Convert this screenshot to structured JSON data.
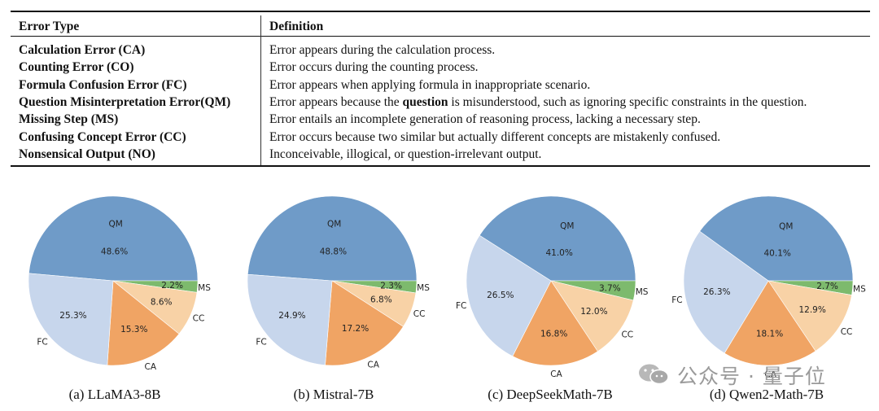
{
  "table": {
    "headers": [
      "Error Type",
      "Definition"
    ],
    "rows": [
      {
        "type": "Calculation Error (CA)",
        "definition": [
          "Error appears during the calculation process."
        ]
      },
      {
        "type": "Counting Error (CO)",
        "definition": [
          "Error occurs during the counting process."
        ]
      },
      {
        "type": "Formula Confusion Error (FC)",
        "definition": [
          "Error appears when applying formula in inappropriate scenario."
        ]
      },
      {
        "type": "Question Misinterpretation Error(QM)",
        "definition": [
          "Error appears because the ",
          "question",
          " is misunderstood, such as ignoring specific constraints in the question."
        ]
      },
      {
        "type": "Missing Step (MS)",
        "definition": [
          "Error entails an incomplete generation of reasoning process, lacking a necessary step."
        ]
      },
      {
        "type": "Confusing Concept Error (CC)",
        "definition": [
          "Error occurs because two similar but actually different concepts are mistakenly confused."
        ]
      },
      {
        "type": "Nonsensical Output (NO)",
        "definition": [
          "Inconceivable, illogical, or question-irrelevant output."
        ]
      }
    ]
  },
  "colors": {
    "QM": "#6f9bc8",
    "MS": "#7dba6d",
    "CC": "#f8d2a6",
    "CA": "#f0a464",
    "FC": "#c7d6ec"
  },
  "chart_data": [
    {
      "type": "pie",
      "title": "(a) LLaMA3-8B",
      "labels": [
        "QM",
        "MS",
        "CC",
        "CA",
        "FC"
      ],
      "values": [
        48.6,
        2.2,
        8.6,
        15.3,
        25.3
      ],
      "value_labels": [
        "48.6%",
        "2.2%",
        "8.6%",
        "15.3%",
        "25.3%"
      ]
    },
    {
      "type": "pie",
      "title": "(b) Mistral-7B",
      "labels": [
        "QM",
        "MS",
        "CC",
        "CA",
        "FC"
      ],
      "values": [
        48.8,
        2.3,
        6.8,
        17.2,
        24.9
      ],
      "value_labels": [
        "48.8%",
        "2.3%",
        "6.8%",
        "17.2%",
        "24.9%"
      ]
    },
    {
      "type": "pie",
      "title": "(c) DeepSeekMath-7B",
      "labels": [
        "QM",
        "MS",
        "CC",
        "CA",
        "FC"
      ],
      "values": [
        41.0,
        3.7,
        12.0,
        16.8,
        26.5
      ],
      "value_labels": [
        "41.0%",
        "3.7%",
        "12.0%",
        "16.8%",
        "26.5%"
      ]
    },
    {
      "type": "pie",
      "title": "(d) Qwen2-Math-7B",
      "labels": [
        "QM",
        "MS",
        "CC",
        "CA",
        "FC"
      ],
      "values": [
        40.1,
        2.7,
        12.9,
        18.1,
        26.3
      ],
      "value_labels": [
        "40.1%",
        "2.7%",
        "12.9%",
        "18.1%",
        "26.3%"
      ]
    }
  ],
  "watermark": "公众号 · 量子位"
}
